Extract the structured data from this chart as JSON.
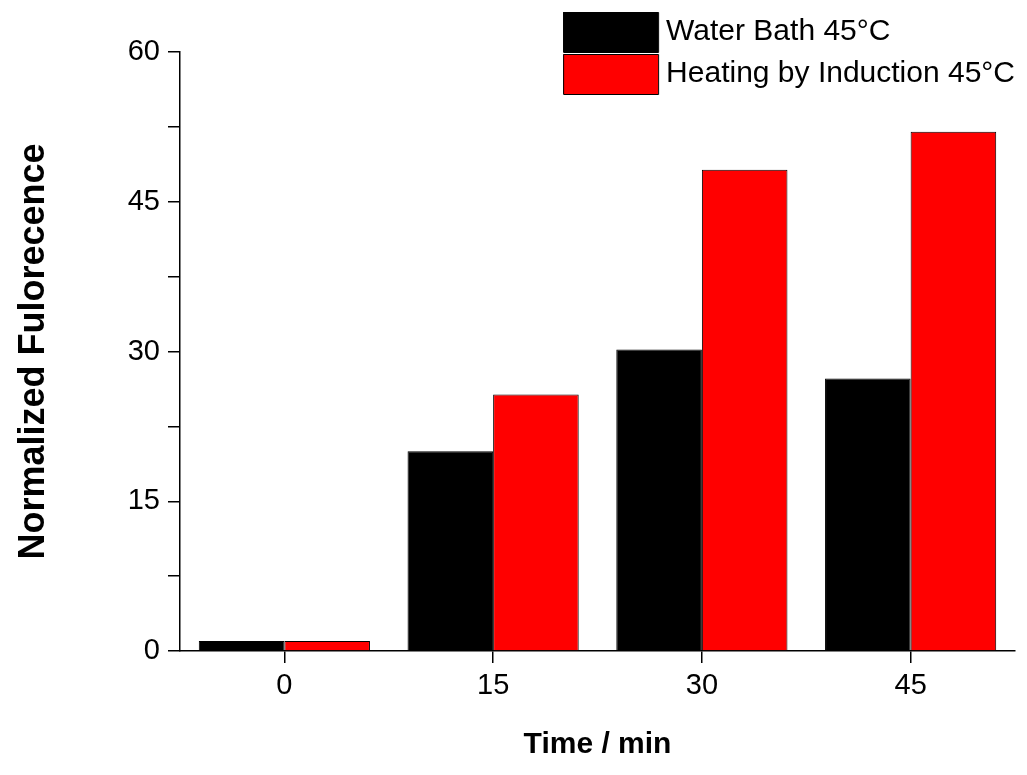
{
  "chart_data": {
    "type": "bar",
    "xlabel": "Time / min",
    "ylabel": "Normalized Fulorecence",
    "categories": [
      "0",
      "15",
      "30",
      "45"
    ],
    "series": [
      {
        "name": "Water Bath 45°C",
        "color": "#000000",
        "values": [
          1,
          20,
          30.2,
          27.3
        ]
      },
      {
        "name": "Heating by Induction 45°C",
        "color": "#ff0000",
        "values": [
          1,
          25.7,
          48.2,
          52
        ]
      }
    ],
    "ylim": [
      0,
      60
    ],
    "yticks": [
      0,
      {
        "value": 7.5,
        "label": null
      },
      15,
      {
        "value": 22.5,
        "label": null
      },
      30,
      {
        "value": 37.5,
        "label": null
      },
      45,
      {
        "value": 52.5,
        "label": null
      },
      60
    ],
    "grid": false,
    "legend": "top right"
  }
}
